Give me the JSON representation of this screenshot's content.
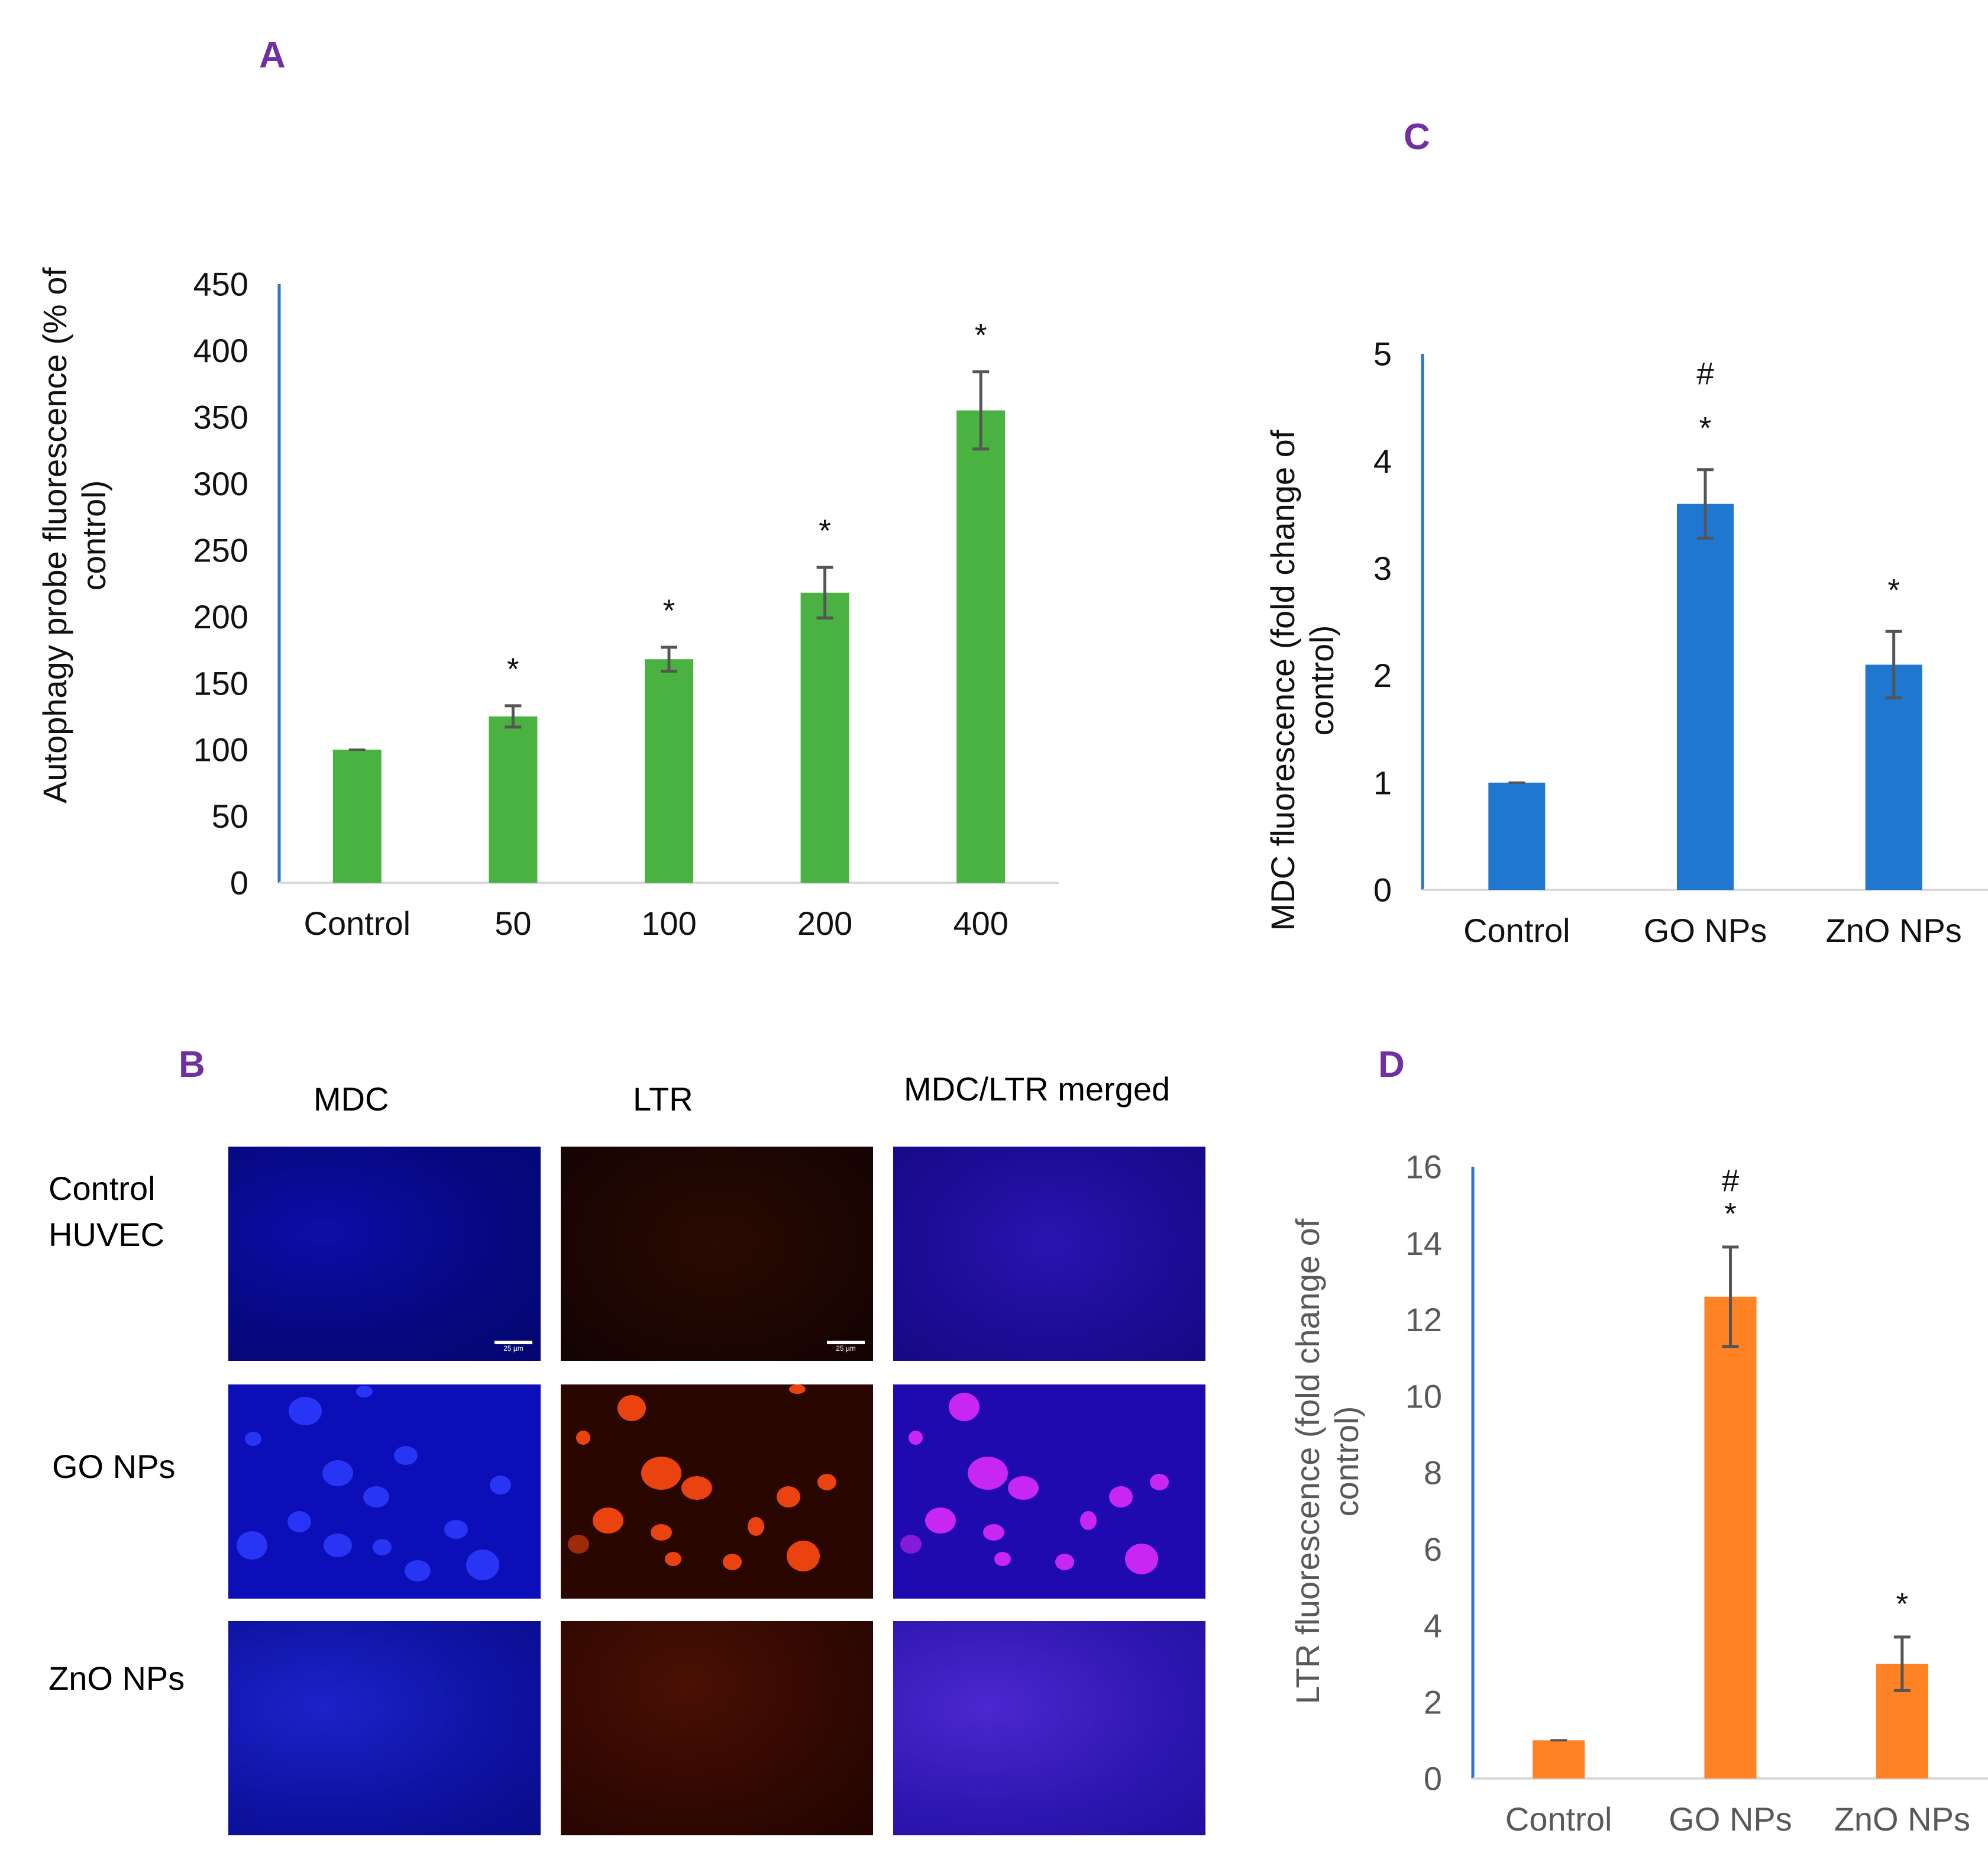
{
  "panels": {
    "a": "A",
    "b": "B",
    "c": "C",
    "d": "D"
  },
  "chart_data": [
    {
      "id": "A",
      "type": "bar",
      "title": "",
      "xlabel": "",
      "ylabel": "Autophagy probe fluorescence (% of control)",
      "ylabel_lines": [
        "Autophagy probe fluorescence (% of",
        "control)"
      ],
      "categories": [
        "Control",
        "50",
        "100",
        "200",
        "400"
      ],
      "values": [
        100,
        125,
        168,
        218,
        355
      ],
      "errors": [
        0,
        8,
        9,
        19,
        29
      ],
      "significance": [
        "",
        "*",
        "*",
        "*",
        "*"
      ],
      "ylim": [
        0,
        450
      ],
      "yticks": [
        0,
        50,
        100,
        150,
        200,
        250,
        300,
        350,
        400,
        450
      ],
      "color": "#4ab240",
      "grid": false
    },
    {
      "id": "C",
      "type": "bar",
      "title": "",
      "xlabel": "",
      "ylabel": "MDC fluorescence (fold change of control)",
      "ylabel_lines": [
        "MDC fluorescence (fold change of",
        "control)"
      ],
      "categories": [
        "Control",
        "GO NPs",
        "ZnO NPs"
      ],
      "values": [
        1.0,
        3.6,
        2.1
      ],
      "errors": [
        0,
        0.32,
        0.31
      ],
      "significance": [
        "",
        "*",
        "*"
      ],
      "significance2": [
        "",
        "#",
        ""
      ],
      "ylim": [
        0,
        5
      ],
      "yticks": [
        0,
        1,
        2,
        3,
        4,
        5
      ],
      "color": "#1f77d0",
      "grid": false
    },
    {
      "id": "D",
      "type": "bar",
      "title": "",
      "xlabel": "",
      "ylabel": "LTR fluorescence (fold change of control)",
      "ylabel_lines": [
        "LTR fluorescence (fold change of",
        "control)"
      ],
      "categories": [
        "Control",
        "GO NPs",
        "ZnO NPs"
      ],
      "values": [
        1.0,
        12.6,
        3.0
      ],
      "errors": [
        0,
        1.3,
        0.7
      ],
      "significance": [
        "",
        "*",
        "*"
      ],
      "significance2": [
        "",
        "#",
        ""
      ],
      "ylim": [
        0,
        16
      ],
      "yticks": [
        0,
        2,
        4,
        6,
        8,
        10,
        12,
        14,
        16
      ],
      "color": "#ff8224",
      "grid": false
    }
  ],
  "micrographs": {
    "columns": [
      "MDC",
      "LTR",
      "MDC/LTR merged"
    ],
    "rows": [
      "Control\nHUVEC",
      "GO NPs",
      "ZnO NPs"
    ],
    "scale_label": "25 µm"
  }
}
